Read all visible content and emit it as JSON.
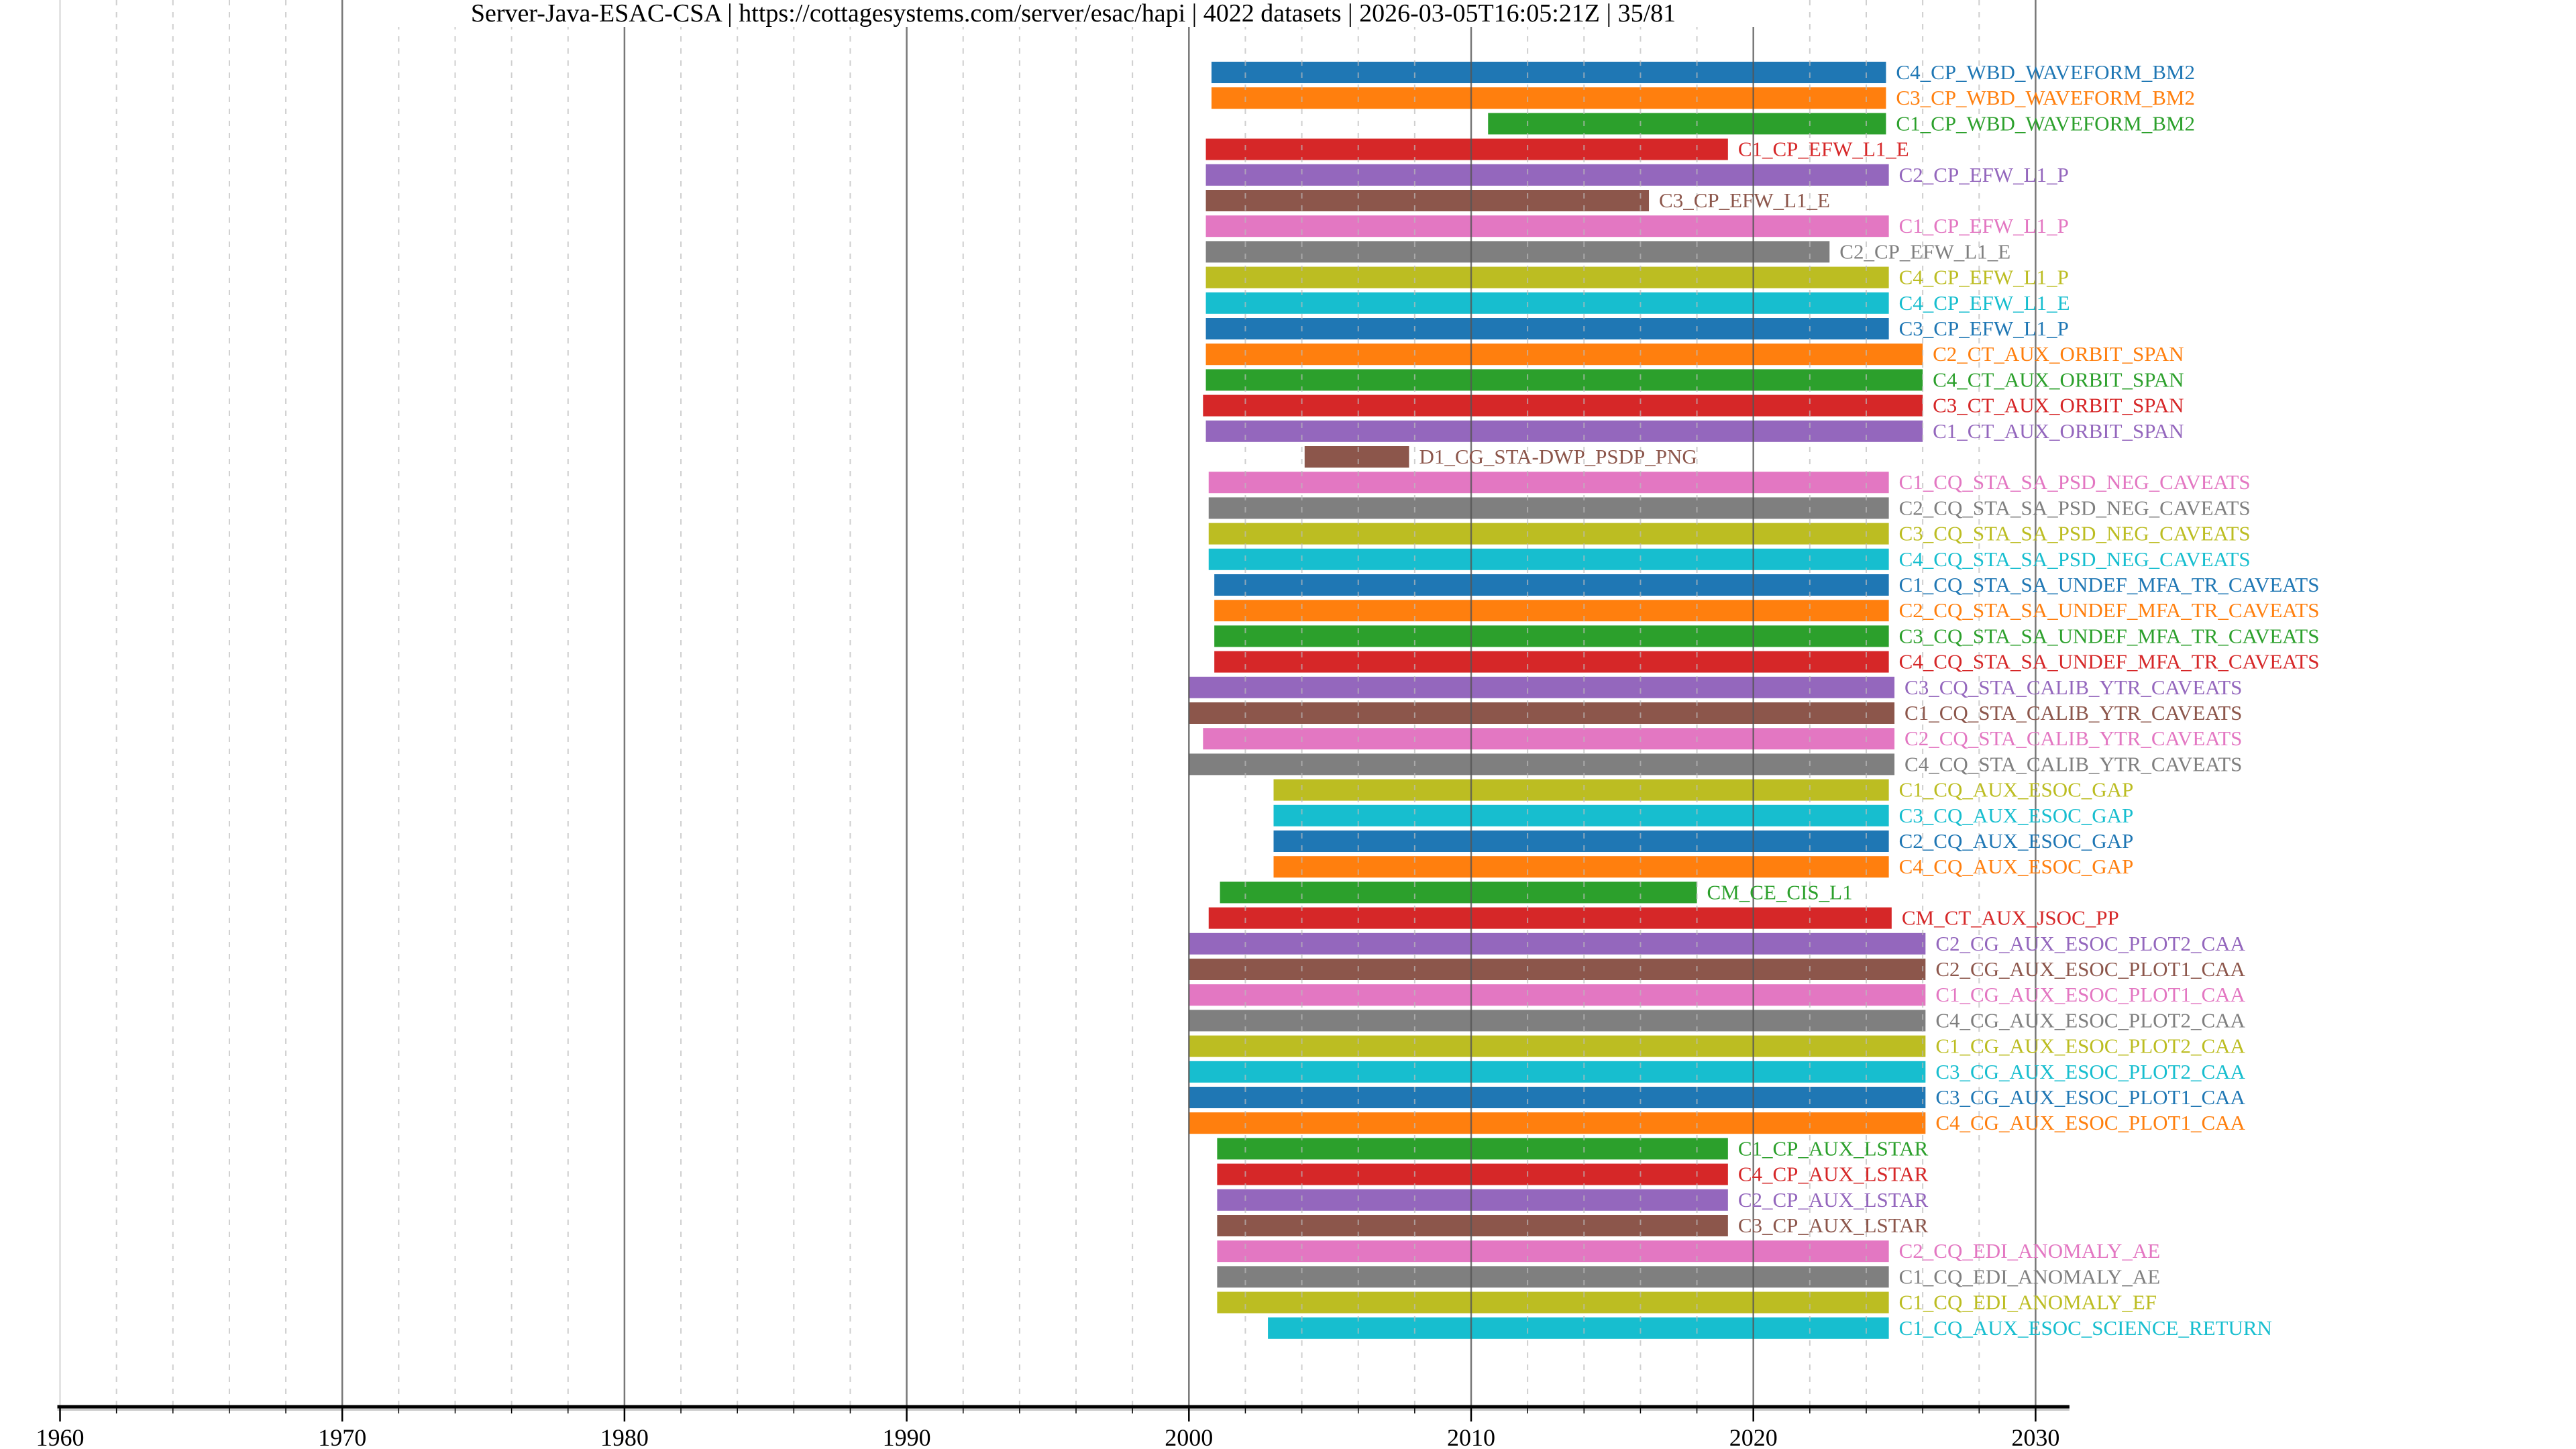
{
  "chart_data": {
    "type": "bar",
    "orientation": "horizontal-timeline",
    "title": "Server-Java-ESAC-CSA | https://cottagesystems.com/server/esac/hapi | 4022 datasets | 2026-03-05T16:05:21Z | 35/81",
    "xlabel": "",
    "ylabel": "",
    "xlim": [
      1960,
      2031
    ],
    "xticks": [
      "1960",
      "1970",
      "1980",
      "1990",
      "2000",
      "2010",
      "2020",
      "2030"
    ],
    "grid": "vertical major (10 yr) solid, minor (2 yr) dashed",
    "palette": [
      "#1f77b4",
      "#ff7f0e",
      "#2ca02c",
      "#d62728",
      "#9467bd",
      "#8c564b",
      "#e377c2",
      "#7f7f7f",
      "#bcbd22",
      "#17becf"
    ],
    "series": [
      {
        "name": "C4_CP_WBD_WAVEFORM_BM2",
        "start": 2000.8,
        "end": 2024.7
      },
      {
        "name": "C3_CP_WBD_WAVEFORM_BM2",
        "start": 2000.8,
        "end": 2024.7
      },
      {
        "name": "C1_CP_WBD_WAVEFORM_BM2",
        "start": 2010.6,
        "end": 2024.7
      },
      {
        "name": "C1_CP_EFW_L1_E",
        "start": 2000.6,
        "end": 2019.1
      },
      {
        "name": "C2_CP_EFW_L1_P",
        "start": 2000.6,
        "end": 2024.8
      },
      {
        "name": "C3_CP_EFW_L1_E",
        "start": 2000.6,
        "end": 2016.3
      },
      {
        "name": "C1_CP_EFW_L1_P",
        "start": 2000.6,
        "end": 2024.8
      },
      {
        "name": "C2_CP_EFW_L1_E",
        "start": 2000.6,
        "end": 2022.7
      },
      {
        "name": "C4_CP_EFW_L1_P",
        "start": 2000.6,
        "end": 2024.8
      },
      {
        "name": "C4_CP_EFW_L1_E",
        "start": 2000.6,
        "end": 2024.8
      },
      {
        "name": "C3_CP_EFW_L1_P",
        "start": 2000.6,
        "end": 2024.8
      },
      {
        "name": "C2_CT_AUX_ORBIT_SPAN",
        "start": 2000.6,
        "end": 2026.0
      },
      {
        "name": "C4_CT_AUX_ORBIT_SPAN",
        "start": 2000.6,
        "end": 2026.0
      },
      {
        "name": "C3_CT_AUX_ORBIT_SPAN",
        "start": 2000.5,
        "end": 2026.0
      },
      {
        "name": "C1_CT_AUX_ORBIT_SPAN",
        "start": 2000.6,
        "end": 2026.0
      },
      {
        "name": "D1_CG_STA-DWP_PSDP_PNG",
        "start": 2004.1,
        "end": 2007.8
      },
      {
        "name": "C1_CQ_STA_SA_PSD_NEG_CAVEATS",
        "start": 2000.7,
        "end": 2024.8
      },
      {
        "name": "C2_CQ_STA_SA_PSD_NEG_CAVEATS",
        "start": 2000.7,
        "end": 2024.8
      },
      {
        "name": "C3_CQ_STA_SA_PSD_NEG_CAVEATS",
        "start": 2000.7,
        "end": 2024.8
      },
      {
        "name": "C4_CQ_STA_SA_PSD_NEG_CAVEATS",
        "start": 2000.7,
        "end": 2024.8
      },
      {
        "name": "C1_CQ_STA_SA_UNDEF_MFA_TR_CAVEATS",
        "start": 2000.9,
        "end": 2024.8
      },
      {
        "name": "C2_CQ_STA_SA_UNDEF_MFA_TR_CAVEATS",
        "start": 2000.9,
        "end": 2024.8
      },
      {
        "name": "C3_CQ_STA_SA_UNDEF_MFA_TR_CAVEATS",
        "start": 2000.9,
        "end": 2024.8
      },
      {
        "name": "C4_CQ_STA_SA_UNDEF_MFA_TR_CAVEATS",
        "start": 2000.9,
        "end": 2024.8
      },
      {
        "name": "C3_CQ_STA_CALIB_YTR_CAVEATS",
        "start": 2000.0,
        "end": 2025.0
      },
      {
        "name": "C1_CQ_STA_CALIB_YTR_CAVEATS",
        "start": 2000.0,
        "end": 2025.0
      },
      {
        "name": "C2_CQ_STA_CALIB_YTR_CAVEATS",
        "start": 2000.5,
        "end": 2025.0
      },
      {
        "name": "C4_CQ_STA_CALIB_YTR_CAVEATS",
        "start": 2000.0,
        "end": 2025.0
      },
      {
        "name": "C1_CQ_AUX_ESOC_GAP",
        "start": 2003.0,
        "end": 2024.8
      },
      {
        "name": "C3_CQ_AUX_ESOC_GAP",
        "start": 2003.0,
        "end": 2024.8
      },
      {
        "name": "C2_CQ_AUX_ESOC_GAP",
        "start": 2003.0,
        "end": 2024.8
      },
      {
        "name": "C4_CQ_AUX_ESOC_GAP",
        "start": 2003.0,
        "end": 2024.8
      },
      {
        "name": "CM_CE_CIS_L1",
        "start": 2001.1,
        "end": 2018.0
      },
      {
        "name": "CM_CT_AUX_JSOC_PP",
        "start": 2000.7,
        "end": 2024.9
      },
      {
        "name": "C2_CG_AUX_ESOC_PLOT2_CAA",
        "start": 2000.0,
        "end": 2026.1
      },
      {
        "name": "C2_CG_AUX_ESOC_PLOT1_CAA",
        "start": 2000.0,
        "end": 2026.1
      },
      {
        "name": "C1_CG_AUX_ESOC_PLOT1_CAA",
        "start": 2000.0,
        "end": 2026.1
      },
      {
        "name": "C4_CG_AUX_ESOC_PLOT2_CAA",
        "start": 2000.0,
        "end": 2026.1
      },
      {
        "name": "C1_CG_AUX_ESOC_PLOT2_CAA",
        "start": 2000.0,
        "end": 2026.1
      },
      {
        "name": "C3_CG_AUX_ESOC_PLOT2_CAA",
        "start": 2000.0,
        "end": 2026.1
      },
      {
        "name": "C3_CG_AUX_ESOC_PLOT1_CAA",
        "start": 2000.0,
        "end": 2026.1
      },
      {
        "name": "C4_CG_AUX_ESOC_PLOT1_CAA",
        "start": 2000.0,
        "end": 2026.1
      },
      {
        "name": "C1_CP_AUX_LSTAR",
        "start": 2001.0,
        "end": 2019.1
      },
      {
        "name": "C4_CP_AUX_LSTAR",
        "start": 2001.0,
        "end": 2019.1
      },
      {
        "name": "C2_CP_AUX_LSTAR",
        "start": 2001.0,
        "end": 2019.1
      },
      {
        "name": "C3_CP_AUX_LSTAR",
        "start": 2001.0,
        "end": 2019.1
      },
      {
        "name": "C2_CQ_EDI_ANOMALY_AE",
        "start": 2001.0,
        "end": 2024.8
      },
      {
        "name": "C1_CQ_EDI_ANOMALY_AE",
        "start": 2001.0,
        "end": 2024.8
      },
      {
        "name": "C1_CQ_EDI_ANOMALY_EF",
        "start": 2001.0,
        "end": 2024.8
      },
      {
        "name": "C1_CQ_AUX_ESOC_SCIENCE_RETURN",
        "start": 2002.8,
        "end": 2024.8
      }
    ]
  }
}
